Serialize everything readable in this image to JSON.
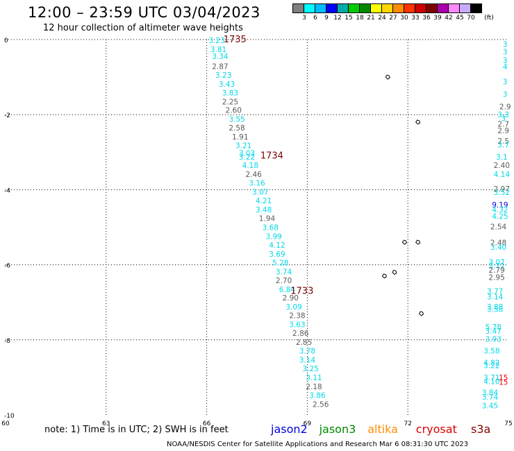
{
  "header": {
    "title": "12:00 – 23:59 UTC 03/04/2023",
    "subtitle": "12 hour collection of altimeter wave heights"
  },
  "colorbar": {
    "colors": [
      "#808080",
      "#00ffff",
      "#00bbff",
      "#0000ff",
      "#00aaaa",
      "#00cc00",
      "#008800",
      "#ffff00",
      "#ffd700",
      "#ff8c00",
      "#ff3300",
      "#cc0000",
      "#800000",
      "#aa00aa",
      "#ff88ff",
      "#c8aaff",
      "#000000"
    ],
    "labels": [
      "3",
      "6",
      "9",
      "12",
      "15",
      "18",
      "21",
      "24",
      "27",
      "30",
      "33",
      "36",
      "39",
      "42",
      "45",
      "70",
      "(ft)"
    ]
  },
  "footer": {
    "note": "note:  1) Time is in UTC;  2) SWH is in feet",
    "credit": "NOAA/NESDIS Center for Satellite Applications and Research    Mar  6 08:31:30 UTC 2023"
  },
  "legend": [
    {
      "name": "jason2",
      "color": "#0000dd"
    },
    {
      "name": "jason3",
      "color": "#008800"
    },
    {
      "name": "altika",
      "color": "#ff8c00"
    },
    {
      "name": "cryosat",
      "color": "#dd0000"
    },
    {
      "name": "s3a",
      "color": "#880000"
    }
  ],
  "chart_data": {
    "type": "scatter",
    "title": "12:00 – 23:59 UTC 03/04/2023",
    "subtitle": "12 hour collection of altimeter wave heights",
    "xlabel": "",
    "ylabel": "",
    "xlim": [
      60,
      75
    ],
    "ylim": [
      -10,
      0
    ],
    "xticks": [
      60,
      63,
      66,
      69,
      72,
      75
    ],
    "yticks": [
      0,
      -2,
      -4,
      -6,
      -8,
      -10
    ],
    "grid": true,
    "units": "ft",
    "passes": [
      {
        "label": "1735",
        "x": 66.5,
        "y": 0,
        "color": "#7a0000"
      },
      {
        "label": "1734",
        "x": 67.6,
        "y": -3.1,
        "color": "#7a0000"
      },
      {
        "label": "1733",
        "x": 68.5,
        "y": -6.7,
        "color": "#7a0000"
      }
    ],
    "series": [
      {
        "points": [
          {
            "x": 66.3,
            "y": -0.02,
            "v": "3.23"
          },
          {
            "x": 66.35,
            "y": -0.26,
            "v": "3.81"
          },
          {
            "x": 66.4,
            "y": -0.44,
            "v": "3.34"
          },
          {
            "x": 66.4,
            "y": -0.71,
            "v": "2.87"
          },
          {
            "x": 66.5,
            "y": -0.94,
            "v": "3.23"
          },
          {
            "x": 66.6,
            "y": -1.18,
            "v": "3.43"
          },
          {
            "x": 66.7,
            "y": -1.41,
            "v": "3.83"
          },
          {
            "x": 66.7,
            "y": -1.65,
            "v": "2.25"
          },
          {
            "x": 66.8,
            "y": -1.88,
            "v": "2.60"
          },
          {
            "x": 66.9,
            "y": -2.12,
            "v": "3.55"
          },
          {
            "x": 66.9,
            "y": -2.35,
            "v": "2.58"
          },
          {
            "x": 67.0,
            "y": -2.59,
            "v": "1.91"
          },
          {
            "x": 67.1,
            "y": -2.82,
            "v": "3.21"
          },
          {
            "x": 67.2,
            "y": -3.02,
            "v": "3.03"
          },
          {
            "x": 67.2,
            "y": -3.12,
            "v": "3.22"
          },
          {
            "x": 67.3,
            "y": -3.35,
            "v": "4.18"
          },
          {
            "x": 67.4,
            "y": -3.59,
            "v": "2.46"
          },
          {
            "x": 67.5,
            "y": -3.82,
            "v": "3.16"
          },
          {
            "x": 67.6,
            "y": -4.06,
            "v": "3.07"
          },
          {
            "x": 67.7,
            "y": -4.29,
            "v": "4.21"
          },
          {
            "x": 67.7,
            "y": -4.53,
            "v": "3.48"
          },
          {
            "x": 67.8,
            "y": -4.76,
            "v": "1.94"
          },
          {
            "x": 67.9,
            "y": -5.0,
            "v": "3.68"
          },
          {
            "x": 68.0,
            "y": -5.24,
            "v": "3.99"
          },
          {
            "x": 68.1,
            "y": -5.47,
            "v": "4.12"
          },
          {
            "x": 68.1,
            "y": -5.71,
            "v": "3.69"
          },
          {
            "x": 68.2,
            "y": -5.94,
            "v": "5.28"
          },
          {
            "x": 68.3,
            "y": -6.18,
            "v": "3.74"
          },
          {
            "x": 68.3,
            "y": -6.41,
            "v": "2.70"
          },
          {
            "x": 68.4,
            "y": -6.65,
            "v": "6.84"
          },
          {
            "x": 68.5,
            "y": -6.88,
            "v": "2.90"
          },
          {
            "x": 68.6,
            "y": -7.12,
            "v": "3.09"
          },
          {
            "x": 68.7,
            "y": -7.35,
            "v": "2.38"
          },
          {
            "x": 68.7,
            "y": -7.59,
            "v": "3.63"
          },
          {
            "x": 68.8,
            "y": -7.82,
            "v": "2.86"
          },
          {
            "x": 68.9,
            "y": -8.06,
            "v": "2.85"
          },
          {
            "x": 69.0,
            "y": -8.29,
            "v": "3.78"
          },
          {
            "x": 69.0,
            "y": -8.53,
            "v": "3.14"
          },
          {
            "x": 69.1,
            "y": -8.76,
            "v": "3.25"
          },
          {
            "x": 69.2,
            "y": -9.0,
            "v": "3.11"
          },
          {
            "x": 69.2,
            "y": -9.24,
            "v": "2.18"
          },
          {
            "x": 69.3,
            "y": -9.47,
            "v": "3.86"
          },
          {
            "x": 69.4,
            "y": -9.71,
            "v": "2.56"
          }
        ]
      },
      {
        "points": [
          {
            "x": 74.9,
            "y": -0.12,
            "v": "3"
          },
          {
            "x": 74.9,
            "y": -0.32,
            "v": "3"
          },
          {
            "x": 74.9,
            "y": -0.55,
            "v": "3"
          },
          {
            "x": 74.9,
            "y": -0.72,
            "v": "4"
          },
          {
            "x": 74.9,
            "y": -1.12,
            "v": "3"
          },
          {
            "x": 74.9,
            "y": -1.45,
            "v": "3"
          },
          {
            "x": 74.9,
            "y": -1.78,
            "v": "2.9"
          },
          {
            "x": 74.85,
            "y": -2.0,
            "v": "3.3"
          },
          {
            "x": 74.85,
            "y": -2.1,
            "v": "3"
          },
          {
            "x": 74.85,
            "y": -2.25,
            "v": "2.7"
          },
          {
            "x": 74.85,
            "y": -2.42,
            "v": "2.9"
          },
          {
            "x": 74.85,
            "y": -2.7,
            "v": "2.5"
          },
          {
            "x": 74.85,
            "y": -2.8,
            "v": "3.7"
          },
          {
            "x": 74.8,
            "y": -3.12,
            "v": "3.1"
          },
          {
            "x": 74.8,
            "y": -3.35,
            "v": "2.40"
          },
          {
            "x": 74.8,
            "y": -3.59,
            "v": "4.14"
          },
          {
            "x": 74.8,
            "y": -3.97,
            "v": "2.97"
          },
          {
            "x": 74.8,
            "y": -4.07,
            "v": "3.52"
          },
          {
            "x": 74.75,
            "y": -4.4,
            "v": "9.19"
          },
          {
            "x": 74.75,
            "y": -4.53,
            "v": "4.32"
          },
          {
            "x": 74.75,
            "y": -4.7,
            "v": "4.25"
          },
          {
            "x": 74.7,
            "y": -4.98,
            "v": "2.54"
          },
          {
            "x": 74.7,
            "y": -5.41,
            "v": "2.48"
          },
          {
            "x": 74.7,
            "y": -5.53,
            "v": "3.40"
          },
          {
            "x": 74.65,
            "y": -5.92,
            "v": "3.07"
          },
          {
            "x": 74.65,
            "y": -6.03,
            "v": "3.72"
          },
          {
            "x": 74.65,
            "y": -6.14,
            "v": "2.79"
          },
          {
            "x": 74.65,
            "y": -6.33,
            "v": "2.95"
          },
          {
            "x": 74.6,
            "y": -6.7,
            "v": "3.77"
          },
          {
            "x": 74.6,
            "y": -6.85,
            "v": "3.14"
          },
          {
            "x": 74.6,
            "y": -7.12,
            "v": "3.88"
          },
          {
            "x": 74.6,
            "y": -7.18,
            "v": "3.58"
          },
          {
            "x": 74.55,
            "y": -7.65,
            "v": "5.78"
          },
          {
            "x": 74.55,
            "y": -7.76,
            "v": "3.47"
          },
          {
            "x": 74.55,
            "y": -7.98,
            "v": "3.93"
          },
          {
            "x": 74.5,
            "y": -8.29,
            "v": "3.58"
          },
          {
            "x": 74.5,
            "y": -8.6,
            "v": "4.82"
          },
          {
            "x": 74.5,
            "y": -8.68,
            "v": "3.22"
          },
          {
            "x": 74.5,
            "y": -9.0,
            "v": "3.71"
          },
          {
            "x": 74.5,
            "y": -9.1,
            "v": "4.10"
          },
          {
            "x": 74.45,
            "y": -9.4,
            "v": "3.84"
          },
          {
            "x": 74.45,
            "y": -9.52,
            "v": "3.74"
          },
          {
            "x": 74.45,
            "y": -9.75,
            "v": "3.45"
          },
          {
            "x": 74.85,
            "y": -9.0,
            "v": "15"
          },
          {
            "x": 74.85,
            "y": -9.12,
            "v": "15"
          }
        ]
      }
    ],
    "islands": [
      {
        "x": 71.4,
        "y": -1.0
      },
      {
        "x": 72.3,
        "y": -2.2
      },
      {
        "x": 71.9,
        "y": -5.4
      },
      {
        "x": 72.3,
        "y": -5.4
      },
      {
        "x": 71.3,
        "y": -6.3
      },
      {
        "x": 71.6,
        "y": -6.2
      },
      {
        "x": 72.4,
        "y": -7.3
      }
    ]
  }
}
